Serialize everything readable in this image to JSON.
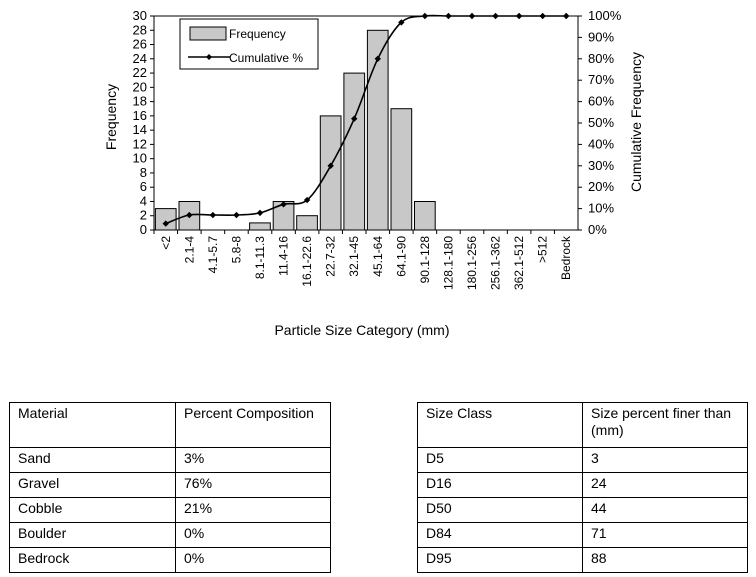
{
  "chart_data": {
    "type": "bar+line",
    "categories": [
      "<2",
      "2.1-4",
      "4.1-5.7",
      "5.8-8",
      "8.1-11.3",
      "11.4-16",
      "16.1-22.6",
      "22.7-32",
      "32.1-45",
      "45.1-64",
      "64.1-90",
      "90.1-128",
      "128.1-180",
      "180.1-256",
      "256.1-362",
      "362.1-512",
      ">512",
      "Bedrock"
    ],
    "series": [
      {
        "name": "Frequency",
        "type": "bar",
        "axis": "left",
        "values": [
          3,
          4,
          0,
          0,
          1,
          4,
          2,
          16,
          22,
          28,
          17,
          4,
          0,
          0,
          0,
          0,
          0,
          0
        ]
      },
      {
        "name": "Cumulative %",
        "type": "line",
        "axis": "right",
        "values": [
          3,
          7,
          7,
          7,
          8,
          12,
          14,
          30,
          52,
          80,
          97,
          100,
          100,
          100,
          100,
          100,
          100,
          100
        ]
      }
    ],
    "xlabel": "Particle Size Category (mm)",
    "ylabel": "Frequency",
    "y2label": "Cumulative Frequency",
    "ylim": [
      0,
      30
    ],
    "y2lim": [
      0,
      100
    ],
    "yticks": [
      "0",
      "2",
      "4",
      "6",
      "8",
      "10",
      "12",
      "14",
      "16",
      "18",
      "20",
      "22",
      "24",
      "26",
      "28",
      "30"
    ],
    "y2ticks": [
      "0%",
      "10%",
      "20%",
      "30%",
      "40%",
      "50%",
      "60%",
      "70%",
      "80%",
      "90%",
      "100%"
    ],
    "legend_position": "top-left",
    "grid": false,
    "bar_color": "#c8c8c8",
    "line_color": "#000000"
  },
  "material_table": {
    "headers": [
      "Material",
      "Percent Composition"
    ],
    "rows": [
      [
        "Sand",
        "3%"
      ],
      [
        "Gravel",
        "76%"
      ],
      [
        "Cobble",
        "21%"
      ],
      [
        "Boulder",
        "0%"
      ],
      [
        "Bedrock",
        "0%"
      ]
    ]
  },
  "size_table": {
    "headers": [
      "Size Class",
      "Size percent  finer than (mm)"
    ],
    "rows": [
      [
        "D5",
        "3"
      ],
      [
        "D16",
        "24"
      ],
      [
        "D50",
        "44"
      ],
      [
        "D84",
        "71"
      ],
      [
        "D95",
        "88"
      ]
    ]
  }
}
